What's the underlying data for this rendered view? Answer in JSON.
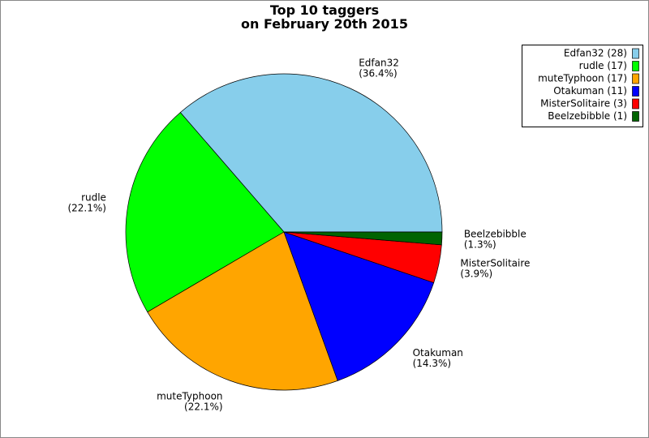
{
  "chart_data": {
    "type": "pie",
    "title": "Top 10 taggers",
    "subtitle": "on February 20th 2015",
    "categories": [
      "Edfan32",
      "rudle",
      "muteTyphoon",
      "Otakuman",
      "MisterSolitaire",
      "Beelzebibble"
    ],
    "values": [
      36.4,
      22.1,
      22.1,
      14.3,
      3.9,
      1.3
    ],
    "value_labels": [
      "(36.4%)",
      "(22.1%)",
      "(22.1%)",
      "(14.3%)",
      "(3.9%)",
      "(1.3%)"
    ],
    "legend_labels": [
      "Edfan32 (28)",
      "rudle (17)",
      "muteTyphoon (17)",
      "Otakuman (11)",
      "MisterSolitaire (3)",
      "Beelzebibble (1)"
    ],
    "colors": [
      "#87ceeb",
      "#00ff00",
      "#ffa500",
      "#0000ff",
      "#ff0000",
      "#006400"
    ],
    "legend": "upper right"
  }
}
